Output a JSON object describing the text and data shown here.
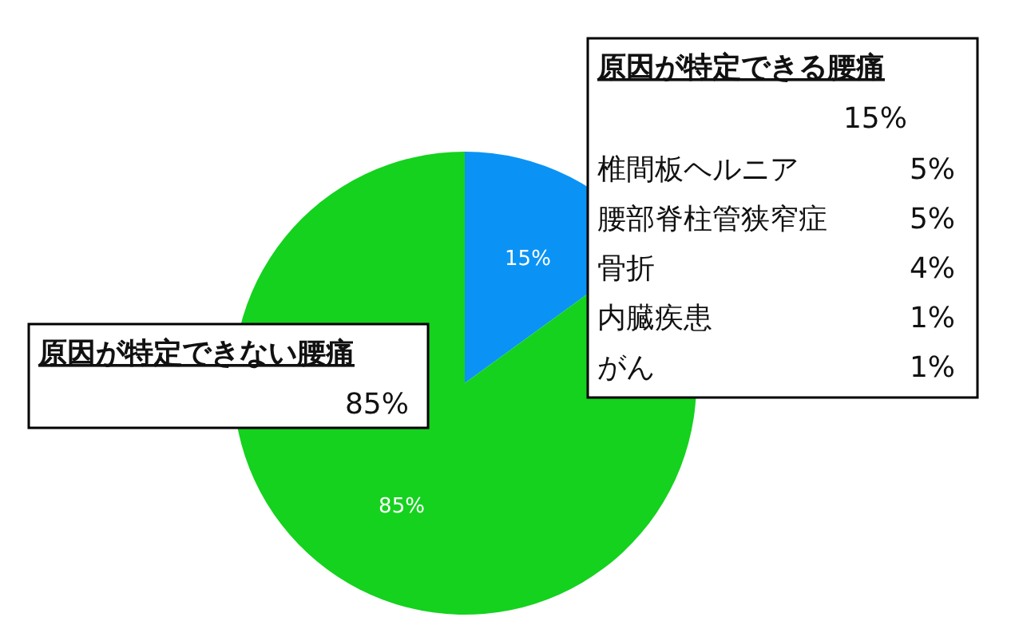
{
  "chart_data": {
    "type": "pie",
    "categories": [
      "原因が特定できる腰痛",
      "原因が特定できない腰痛"
    ],
    "values": [
      15,
      85
    ],
    "value_labels": [
      "15%",
      "85%"
    ],
    "colors": [
      "#0a93f5",
      "#14d21e"
    ],
    "annotations": [
      "椎間板ヘルニア 5%",
      "腰部脊柱管狭窄症 5%",
      "骨折 4%",
      "内臓疾患 1%",
      "がん 1%"
    ]
  }
}
